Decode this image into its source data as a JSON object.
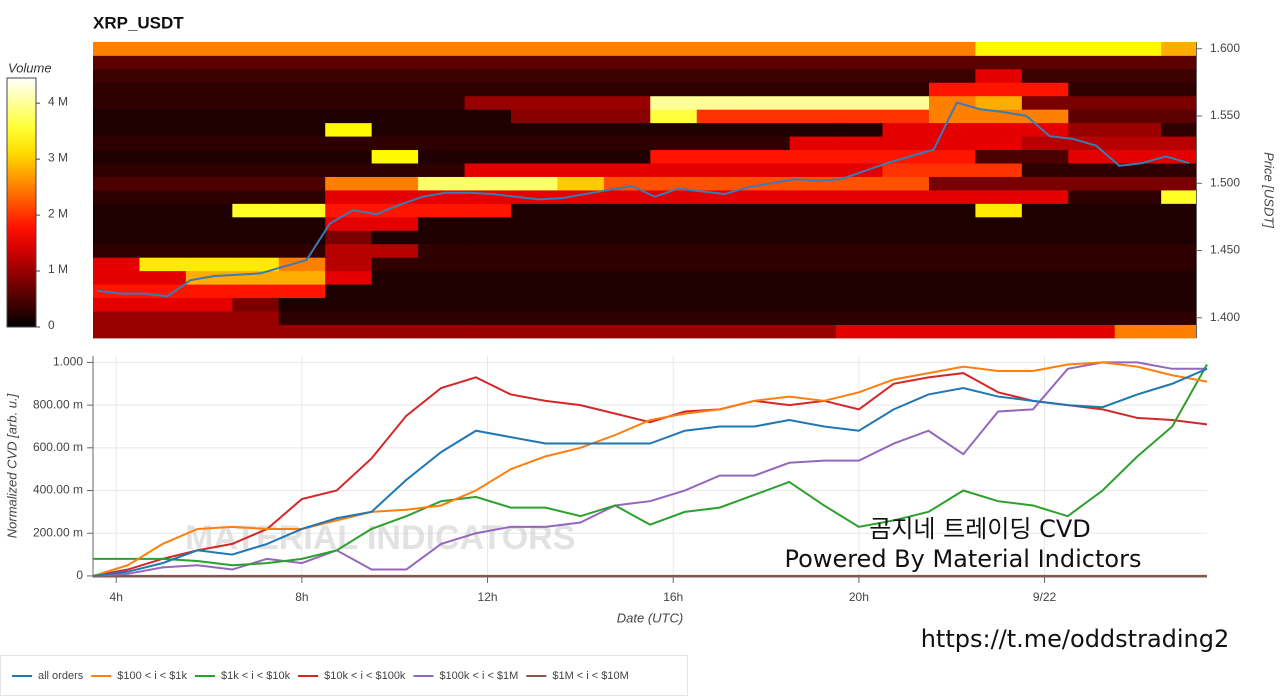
{
  "chart_data": [
    {
      "type": "heatmap",
      "title": "XRP_USDT",
      "y_label": "Price [USDT]",
      "colormap": "hot",
      "xlim": [
        3.5,
        27.25
      ],
      "ylim": [
        1.385,
        1.605
      ],
      "yticks": [
        {
          "value": 1.4,
          "label": "1.400"
        },
        {
          "value": 1.45,
          "label": "1.450"
        },
        {
          "value": 1.5,
          "label": "1.500"
        },
        {
          "value": 1.55,
          "label": "1.550"
        },
        {
          "value": 1.6,
          "label": "1.600"
        }
      ],
      "xbins": [
        3.5,
        4.5,
        5.5,
        6.5,
        7.5,
        8.5,
        9.5,
        10.5,
        11.5,
        12.5,
        13.5,
        14.5,
        15.5,
        16.5,
        17.5,
        18.5,
        19.5,
        20.5,
        21.5,
        22.5,
        23.5,
        24.5,
        25.5,
        26.5,
        27.25
      ],
      "ybins": [
        1.385,
        1.395,
        1.405,
        1.415,
        1.425,
        1.435,
        1.445,
        1.455,
        1.465,
        1.475,
        1.485,
        1.495,
        1.505,
        1.515,
        1.525,
        1.535,
        1.545,
        1.555,
        1.565,
        1.575,
        1.585,
        1.595,
        1.605
      ],
      "z": [
        [
          1000000,
          1000000,
          1000000,
          1000000,
          1000000,
          1000000,
          1000000,
          1000000,
          1000000,
          1000000,
          1000000,
          1000000,
          1000000,
          1000000,
          1000000,
          1000000,
          1500000,
          1500000,
          1500000,
          1500000,
          1500000,
          1500000,
          2500000,
          2500000
        ],
        [
          1000000,
          1000000,
          1000000,
          1000000,
          300000,
          300000,
          300000,
          300000,
          300000,
          300000,
          300000,
          300000,
          300000,
          300000,
          300000,
          300000,
          300000,
          300000,
          300000,
          300000,
          300000,
          300000,
          300000,
          300000
        ],
        [
          1500000,
          1500000,
          1500000,
          800000,
          200000,
          200000,
          200000,
          200000,
          200000,
          200000,
          200000,
          200000,
          200000,
          200000,
          200000,
          200000,
          200000,
          200000,
          200000,
          200000,
          200000,
          200000,
          200000,
          200000
        ],
        [
          1800000,
          1800000,
          1800000,
          1800000,
          1800000,
          200000,
          200000,
          200000,
          200000,
          200000,
          200000,
          200000,
          200000,
          200000,
          200000,
          200000,
          200000,
          200000,
          200000,
          200000,
          200000,
          200000,
          200000,
          200000
        ],
        [
          1500000,
          1500000,
          2800000,
          2800000,
          2800000,
          1500000,
          200000,
          200000,
          200000,
          200000,
          200000,
          200000,
          200000,
          200000,
          200000,
          200000,
          200000,
          200000,
          200000,
          200000,
          200000,
          200000,
          200000,
          200000
        ],
        [
          1500000,
          3200000,
          3200000,
          3200000,
          2500000,
          1200000,
          300000,
          300000,
          300000,
          300000,
          300000,
          300000,
          300000,
          300000,
          300000,
          300000,
          300000,
          300000,
          300000,
          300000,
          300000,
          300000,
          300000,
          300000
        ],
        [
          300000,
          300000,
          300000,
          300000,
          300000,
          1200000,
          1200000,
          300000,
          300000,
          300000,
          300000,
          300000,
          300000,
          300000,
          300000,
          300000,
          300000,
          300000,
          300000,
          300000,
          300000,
          300000,
          300000,
          300000
        ],
        [
          200000,
          200000,
          200000,
          200000,
          200000,
          800000,
          200000,
          200000,
          200000,
          200000,
          200000,
          200000,
          200000,
          200000,
          200000,
          200000,
          200000,
          200000,
          200000,
          200000,
          200000,
          200000,
          200000,
          200000
        ],
        [
          200000,
          200000,
          200000,
          200000,
          200000,
          1500000,
          1500000,
          200000,
          200000,
          200000,
          200000,
          200000,
          200000,
          200000,
          200000,
          200000,
          200000,
          200000,
          200000,
          200000,
          200000,
          200000,
          200000,
          200000
        ],
        [
          200000,
          200000,
          200000,
          3500000,
          3500000,
          1800000,
          1800000,
          1800000,
          1800000,
          200000,
          200000,
          200000,
          200000,
          200000,
          200000,
          200000,
          200000,
          200000,
          200000,
          3200000,
          200000,
          200000,
          200000,
          200000
        ],
        [
          300000,
          300000,
          300000,
          300000,
          300000,
          1500000,
          1500000,
          1500000,
          1500000,
          1500000,
          1500000,
          1500000,
          1500000,
          1500000,
          1500000,
          1500000,
          1500000,
          1500000,
          1500000,
          1500000,
          1500000,
          300000,
          300000,
          3500000
        ],
        [
          500000,
          500000,
          500000,
          500000,
          500000,
          2500000,
          2500000,
          3800000,
          3800000,
          3800000,
          3000000,
          2200000,
          2200000,
          2200000,
          2200000,
          2200000,
          2200000,
          2200000,
          800000,
          800000,
          800000,
          800000,
          800000,
          800000
        ],
        [
          300000,
          300000,
          300000,
          300000,
          300000,
          300000,
          300000,
          300000,
          1500000,
          1500000,
          1500000,
          1500000,
          1500000,
          1500000,
          1500000,
          1500000,
          1500000,
          2000000,
          2000000,
          2000000,
          300000,
          300000,
          300000,
          300000
        ],
        [
          200000,
          200000,
          200000,
          200000,
          200000,
          200000,
          3300000,
          200000,
          200000,
          200000,
          200000,
          200000,
          1800000,
          1800000,
          1800000,
          1800000,
          1800000,
          1800000,
          1800000,
          500000,
          500000,
          1500000,
          1500000,
          1500000
        ],
        [
          300000,
          300000,
          300000,
          300000,
          300000,
          300000,
          300000,
          300000,
          300000,
          300000,
          300000,
          300000,
          300000,
          300000,
          300000,
          1500000,
          1500000,
          1500000,
          1500000,
          1500000,
          1200000,
          1200000,
          1200000,
          1200000
        ],
        [
          200000,
          200000,
          200000,
          200000,
          200000,
          3300000,
          200000,
          200000,
          200000,
          200000,
          200000,
          200000,
          200000,
          200000,
          200000,
          200000,
          200000,
          1500000,
          1500000,
          1500000,
          1500000,
          1000000,
          1000000,
          300000
        ],
        [
          200000,
          200000,
          200000,
          200000,
          200000,
          200000,
          200000,
          200000,
          200000,
          900000,
          900000,
          900000,
          3600000,
          2000000,
          2000000,
          2000000,
          2000000,
          2000000,
          2500000,
          2500000,
          2500000,
          600000,
          600000,
          600000
        ],
        [
          300000,
          300000,
          300000,
          300000,
          300000,
          300000,
          300000,
          300000,
          1000000,
          1000000,
          1000000,
          1000000,
          4000000,
          4000000,
          4000000,
          4000000,
          4000000,
          4000000,
          2500000,
          2800000,
          800000,
          800000,
          800000,
          800000
        ],
        [
          300000,
          300000,
          300000,
          300000,
          300000,
          300000,
          300000,
          300000,
          300000,
          300000,
          300000,
          300000,
          300000,
          300000,
          300000,
          300000,
          300000,
          300000,
          1800000,
          1800000,
          1800000,
          300000,
          300000,
          300000
        ],
        [
          400000,
          400000,
          400000,
          400000,
          400000,
          400000,
          400000,
          400000,
          400000,
          400000,
          400000,
          400000,
          400000,
          400000,
          400000,
          400000,
          400000,
          400000,
          400000,
          1500000,
          400000,
          400000,
          400000,
          400000
        ],
        [
          600000,
          600000,
          600000,
          600000,
          600000,
          600000,
          600000,
          600000,
          600000,
          600000,
          600000,
          600000,
          600000,
          600000,
          600000,
          600000,
          600000,
          600000,
          600000,
          600000,
          600000,
          600000,
          600000,
          600000
        ],
        [
          2500000,
          2500000,
          2500000,
          2500000,
          2500000,
          2500000,
          2500000,
          2500000,
          2500000,
          2500000,
          2500000,
          2500000,
          2500000,
          2500000,
          2500000,
          2500000,
          2500000,
          2500000,
          2500000,
          3300000,
          3300000,
          3300000,
          3300000,
          2800000
        ]
      ],
      "colorbar": {
        "label": "Volume",
        "clim": [
          0,
          4450000
        ],
        "ticks": [
          0,
          {
            "value": 1000000,
            "label": "1 M"
          },
          {
            "value": 2000000,
            "label": "2 M"
          },
          {
            "value": 3000000,
            "label": "3 M"
          },
          {
            "value": 4000000,
            "label": "4 M"
          }
        ]
      },
      "price_line": {
        "color": "#3b7bb3",
        "x": [
          3.6,
          4.1,
          4.6,
          5.1,
          5.6,
          6.1,
          6.6,
          7.1,
          7.6,
          8.1,
          8.6,
          9.1,
          9.6,
          10.1,
          10.6,
          11.1,
          11.6,
          12.1,
          12.6,
          13.1,
          13.6,
          14.1,
          14.6,
          15.1,
          15.6,
          16.1,
          16.6,
          17.1,
          17.6,
          18.1,
          18.6,
          19.1,
          19.6,
          20.1,
          20.6,
          21.1,
          21.6,
          22.1,
          22.6,
          23.1,
          23.6,
          24.1,
          24.6,
          25.1,
          25.6,
          26.1,
          26.6,
          27.1
        ],
        "values": [
          1.42,
          1.418,
          1.418,
          1.416,
          1.428,
          1.431,
          1.432,
          1.433,
          1.438,
          1.443,
          1.47,
          1.48,
          1.477,
          1.484,
          1.49,
          1.493,
          1.493,
          1.492,
          1.49,
          1.488,
          1.489,
          1.492,
          1.495,
          1.498,
          1.49,
          1.496,
          1.494,
          1.492,
          1.497,
          1.5,
          1.503,
          1.502,
          1.503,
          1.509,
          1.515,
          1.52,
          1.525,
          1.56,
          1.555,
          1.553,
          1.55,
          1.535,
          1.533,
          1.528,
          1.513,
          1.515,
          1.52,
          1.515
        ]
      }
    },
    {
      "type": "line",
      "x_label": "Date (UTC)",
      "y_label": "Normalized CVD [arb. u.]",
      "grid": true,
      "legend": "bottom-left",
      "xlim": [
        3.5,
        27.5
      ],
      "ylim": [
        -0.005,
        1.03
      ],
      "xticks": [
        {
          "value": 4,
          "label": "4h"
        },
        {
          "value": 8,
          "label": "8h"
        },
        {
          "value": 12,
          "label": "12h"
        },
        {
          "value": 16,
          "label": "16h"
        },
        {
          "value": 20,
          "label": "20h"
        },
        {
          "value": 24,
          "label": "9/22"
        }
      ],
      "yticks": [
        0,
        {
          "value": 0.2,
          "label": "200.00 m"
        },
        {
          "value": 0.4,
          "label": "400.00 m"
        },
        {
          "value": 0.6,
          "label": "600.00 m"
        },
        {
          "value": 0.8,
          "label": "800.00 m"
        },
        {
          "value": 1,
          "label": "1.000"
        }
      ],
      "x": [
        3.5,
        4.25,
        5,
        5.75,
        6.5,
        7.25,
        8,
        8.75,
        9.5,
        10.25,
        11,
        11.75,
        12.5,
        13.25,
        14,
        14.75,
        15.5,
        16.25,
        17,
        17.75,
        18.5,
        19.25,
        20,
        20.75,
        21.5,
        22.25,
        23,
        23.75,
        24.5,
        25.25,
        26,
        26.75,
        27.5
      ],
      "series": [
        {
          "name": "all orders",
          "color": "#1f77b4",
          "values": [
            0,
            0.02,
            0.06,
            0.12,
            0.1,
            0.15,
            0.22,
            0.27,
            0.3,
            0.45,
            0.58,
            0.68,
            0.65,
            0.62,
            0.62,
            0.62,
            0.62,
            0.68,
            0.7,
            0.7,
            0.73,
            0.7,
            0.68,
            0.78,
            0.85,
            0.88,
            0.84,
            0.82,
            0.8,
            0.79,
            0.85,
            0.9,
            0.97
          ]
        },
        {
          "name": "$100 < i < $1k",
          "color": "#ff7f0e",
          "values": [
            0,
            0.05,
            0.15,
            0.22,
            0.23,
            0.22,
            0.22,
            0.26,
            0.3,
            0.31,
            0.33,
            0.4,
            0.5,
            0.56,
            0.6,
            0.66,
            0.73,
            0.76,
            0.78,
            0.82,
            0.84,
            0.82,
            0.86,
            0.92,
            0.95,
            0.98,
            0.96,
            0.96,
            0.99,
            1.0,
            0.98,
            0.94,
            0.91
          ]
        },
        {
          "name": "$1k < i < $10k",
          "color": "#2ca02c",
          "values": [
            0.08,
            0.08,
            0.08,
            0.07,
            0.05,
            0.06,
            0.08,
            0.12,
            0.22,
            0.28,
            0.35,
            0.37,
            0.32,
            0.32,
            0.28,
            0.33,
            0.24,
            0.3,
            0.32,
            0.38,
            0.44,
            0.33,
            0.23,
            0.26,
            0.3,
            0.4,
            0.35,
            0.33,
            0.28,
            0.4,
            0.56,
            0.7,
            0.99
          ]
        },
        {
          "name": "$10k < i < $100k",
          "color": "#d62728",
          "values": [
            0,
            0.03,
            0.08,
            0.12,
            0.15,
            0.22,
            0.36,
            0.4,
            0.55,
            0.75,
            0.88,
            0.93,
            0.85,
            0.82,
            0.8,
            0.76,
            0.72,
            0.77,
            0.78,
            0.82,
            0.8,
            0.82,
            0.78,
            0.9,
            0.93,
            0.95,
            0.86,
            0.82,
            0.8,
            0.78,
            0.74,
            0.73,
            0.71
          ]
        },
        {
          "name": "$100k < i < $1M",
          "color": "#9467bd",
          "values": [
            0,
            0.01,
            0.04,
            0.05,
            0.03,
            0.08,
            0.06,
            0.12,
            0.03,
            0.03,
            0.15,
            0.2,
            0.23,
            0.23,
            0.25,
            0.33,
            0.35,
            0.4,
            0.47,
            0.47,
            0.53,
            0.54,
            0.54,
            0.62,
            0.68,
            0.57,
            0.77,
            0.78,
            0.97,
            1.0,
            1.0,
            0.97,
            0.97
          ]
        },
        {
          "name": "$1M < i < $10M",
          "color": "#8c564b",
          "values": [
            0,
            0,
            0,
            0,
            0,
            0,
            0,
            0,
            0,
            0,
            0,
            0,
            0,
            0,
            0,
            0,
            0,
            0,
            0,
            0,
            0,
            0,
            0,
            0,
            0,
            0,
            0,
            0,
            0,
            0,
            0,
            0,
            0
          ]
        }
      ],
      "watermark": "MATERIAL INDICATORS",
      "annotations": [
        "곰지네 트레이딩 CVD",
        "Powered By Material Indictors",
        "https://t.me/oddstrading2"
      ]
    }
  ]
}
